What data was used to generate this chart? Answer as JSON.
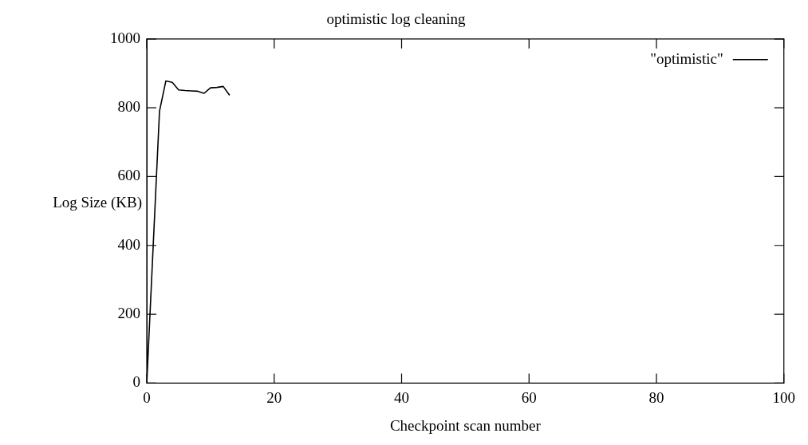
{
  "chart_data": {
    "type": "line",
    "title": "optimistic log cleaning",
    "xlabel": "Checkpoint scan number",
    "ylabel": "Log Size (KB)",
    "x": [
      0,
      2,
      3,
      4,
      5,
      6,
      7,
      8,
      9,
      10,
      11,
      12,
      13
    ],
    "series": [
      {
        "name": "\"optimistic\"",
        "color": "#000000",
        "values": [
          0,
          790,
          878,
          874,
          852,
          850,
          849,
          848,
          842,
          858,
          859,
          862,
          836
        ]
      }
    ],
    "xlim": [
      0,
      100
    ],
    "xticks": [
      0,
      20,
      40,
      60,
      80,
      100
    ],
    "ylim": [
      0,
      1000
    ],
    "yticks": [
      0,
      200,
      400,
      600,
      800,
      1000
    ],
    "grid": false,
    "legend": "top right",
    "marker": "none",
    "line_style": "solid"
  }
}
